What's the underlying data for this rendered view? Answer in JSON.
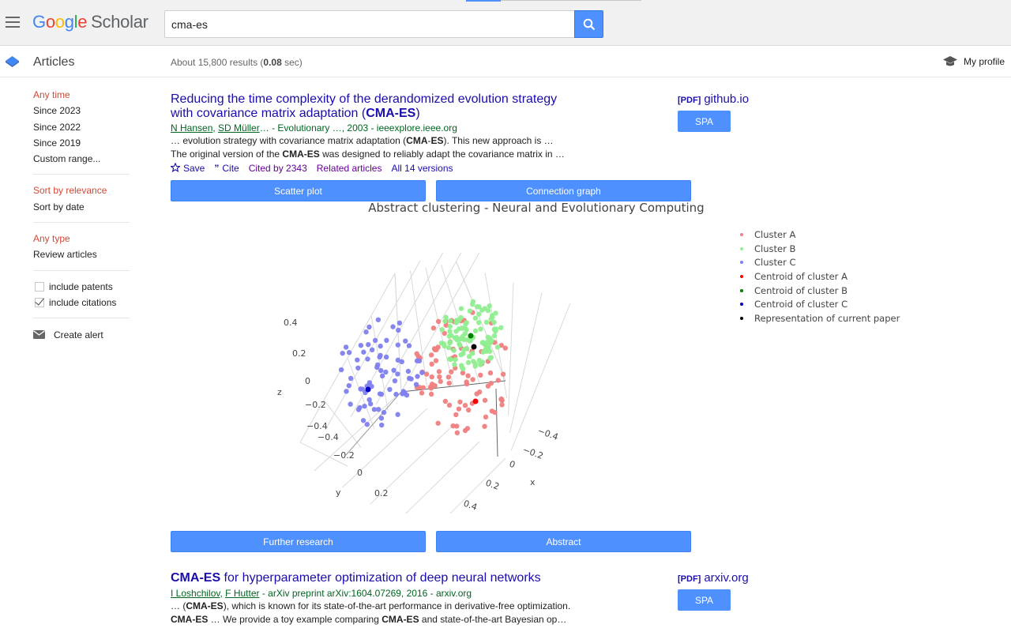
{
  "header": {
    "logo_google": [
      "G",
      "o",
      "o",
      "g",
      "l",
      "e"
    ],
    "logo_scholar": "Scholar",
    "search_value": "cma-es"
  },
  "subheader": {
    "section": "Articles",
    "results_prefix": "About 15,800 results (",
    "results_time": "0.08",
    "results_suffix": " sec)",
    "profile": "My profile"
  },
  "sidebar": {
    "time_items": [
      "Any time",
      "Since 2023",
      "Since 2022",
      "Since 2019",
      "Custom range..."
    ],
    "sort_items": [
      "Sort by relevance",
      "Sort by date"
    ],
    "type_items": [
      "Any type",
      "Review articles"
    ],
    "include_patents": "include patents",
    "include_citations": "include citations",
    "create_alert": "Create alert"
  },
  "results": [
    {
      "title_pre": "Reducing the time complexity of the derandomized evolution strategy with covariance matrix adaptation (",
      "title_bold": "CMA-ES",
      "title_post": ")",
      "author1": "N Hansen",
      "author2": "SD Müller",
      "source": "… - Evolutionary …, 2003 - ieeexplore.ieee.org",
      "snippet1_pre": "… evolution strategy with covariance matrix adaptation (",
      "snippet1_bold": "CMA",
      "snippet1_mid": "-",
      "snippet1_bold2": "ES",
      "snippet1_post": "). This new approach is …",
      "snippet2_pre": "The original version of the ",
      "snippet2_bold": "CMA-ES",
      "snippet2_post": " was designed to reliably adapt the covariance matrix in …",
      "save": "Save",
      "cite": "Cite",
      "cited_by": "Cited by 2343",
      "related": "Related articles",
      "versions": "All 14 versions",
      "side_pdf": "[PDF]",
      "side_domain": "github.io",
      "spa": "SPA"
    },
    {
      "title_bold": "CMA-ES",
      "title_post": " for hyperparameter optimization of deep neural networks",
      "author1": "I Loshchilov",
      "author2": "F Hutter",
      "source": " - arXiv preprint arXiv:1604.07269, 2016 - arxiv.org",
      "snippet1_pre": "… (",
      "snippet1_bold": "CMA-ES",
      "snippet1_post": "), which is known for its state-of-the-art performance in derivative-free optimization.",
      "snippet2_bold": "CMA-ES",
      "snippet2_mid": " … We provide a toy example comparing ",
      "snippet2_bold2": "CMA-ES",
      "snippet2_post": " and state-of-the-art Bayesian op…",
      "side_pdf": "[PDF]",
      "side_domain": "arxiv.org",
      "spa": "SPA"
    }
  ],
  "buttons": {
    "scatter_plot": "Scatter plot",
    "connection_graph": "Connection graph",
    "further_research": "Further research",
    "abstract": "Abstract"
  },
  "chart_data": {
    "type": "scatter",
    "title": "Abstract clustering - Neural and Evolutionary Computing",
    "xlabel": "x",
    "ylabel": "y",
    "zlabel": "z",
    "x_ticks": [
      "−0.4",
      "−0.2",
      "0",
      "0.2",
      "0.4"
    ],
    "y_ticks": [
      "−0.4",
      "−0.2",
      "0",
      "0.2"
    ],
    "z_ticks": [
      "0.4",
      "0.2",
      "0",
      "−0.2",
      "−0.4"
    ],
    "series": [
      {
        "name": "Cluster A",
        "color": "#f08080"
      },
      {
        "name": "Cluster B",
        "color": "#90ee90"
      },
      {
        "name": "Cluster C",
        "color": "#8080f0"
      },
      {
        "name": "Centroid of cluster A",
        "color": "#ff0000"
      },
      {
        "name": "Centroid of cluster B",
        "color": "#008000"
      },
      {
        "name": "Centroid of cluster C",
        "color": "#0000cc"
      },
      {
        "name": "Representation of current paper",
        "color": "#000000"
      }
    ]
  }
}
